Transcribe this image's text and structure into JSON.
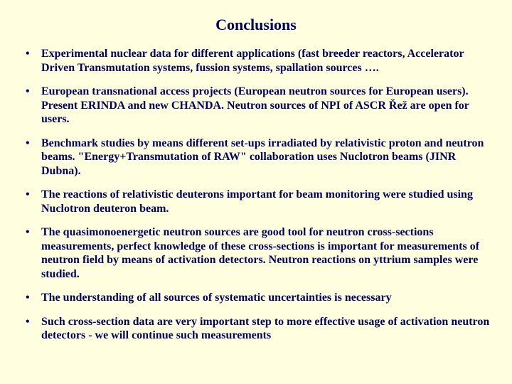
{
  "title": "Conclusions",
  "bullets": [
    "Experimental nuclear data for different applications (fast breeder reactors, Accelerator Driven Transmutation systems, fussion systems, spallation sources ….",
    "European transnational access projects (European neutron sources for European users). Present ERINDA and new CHANDA.  Neutron sources of NPI of ASCR Řež are open for users.",
    "Benchmark studies by means different set-ups irradiated by relativistic proton and neutron beams. \"Energy+Transmutation of RAW\" collaboration uses Nuclotron beams (JINR Dubna).",
    "The reactions of relativistic deuterons important for beam monitoring were studied using Nuclotron deuteron beam.",
    "The quasimonoenergetic neutron sources are good tool for neutron cross-sections measurements, perfect knowledge of these cross-sections is important for measurements of neutron field by means of activation detectors. Neutron reactions on yttrium samples were studied.",
    "The understanding of all sources of systematic uncertainties is necessary",
    "Such cross-section data are very important step to more effective usage of activation neutron detectors  - we will continue such measurements"
  ],
  "colors": {
    "background": "#ffffe0",
    "text": "#000060"
  },
  "typography": {
    "title_fontsize": 22,
    "body_fontsize": 16,
    "font_family": "Times New Roman",
    "weight": "bold"
  }
}
